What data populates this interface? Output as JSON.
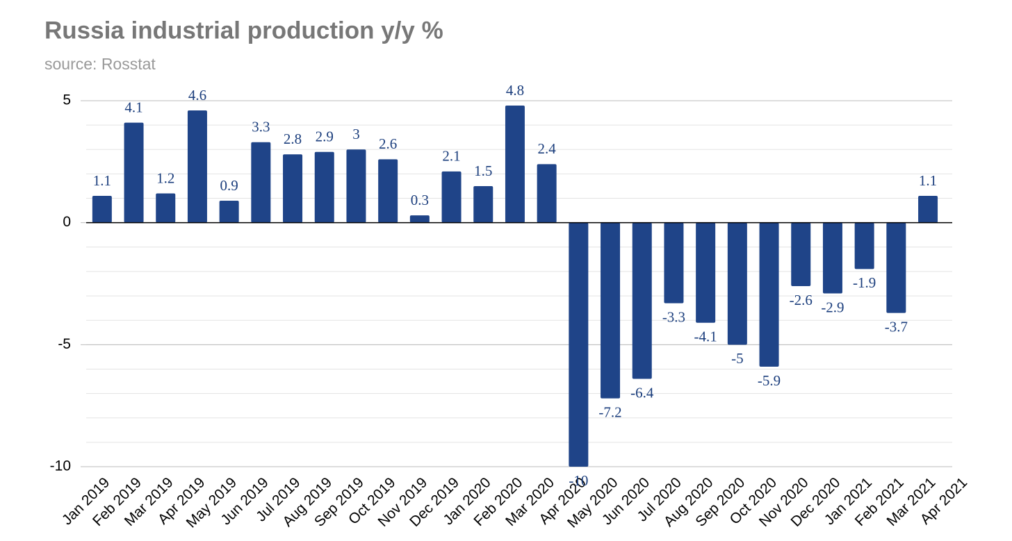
{
  "chart_data": {
    "type": "bar",
    "title": "Russia industrial production y/y %",
    "subtitle": "source: Rosstat",
    "categories": [
      "Jan 2019",
      "Feb 2019",
      "Mar 2019",
      "Apr 2019",
      "May 2019",
      "Jun 2019",
      "Jul 2019",
      "Aug 2019",
      "Sep 2019",
      "Oct 2019",
      "Nov 2019",
      "Dec 2019",
      "Jan 2020",
      "Feb 2020",
      "Mar 2020",
      "Apr 2020",
      "May 2020",
      "Jun 2020",
      "Jul 2020",
      "Aug 2020",
      "Sep 2020",
      "Oct 2020",
      "Nov 2020",
      "Dec 2020",
      "Jan 2021",
      "Feb 2021",
      "Mar 2021",
      "Apr 2021"
    ],
    "values": [
      1.1,
      4.1,
      1.2,
      4.6,
      0.9,
      3.3,
      2.8,
      2.9,
      3,
      2.6,
      0.3,
      2.1,
      1.5,
      4.8,
      2.4,
      -10,
      -7.2,
      -6.4,
      -3.3,
      -4.1,
      -5,
      -5.9,
      -2.6,
      -2.9,
      -1.9,
      -3.7,
      1.1,
      null
    ],
    "color": "#1f4488",
    "ylim": [
      -10,
      5
    ],
    "yticks": [
      -10,
      -5,
      0,
      5
    ],
    "grid": true,
    "minor_grid": true
  }
}
